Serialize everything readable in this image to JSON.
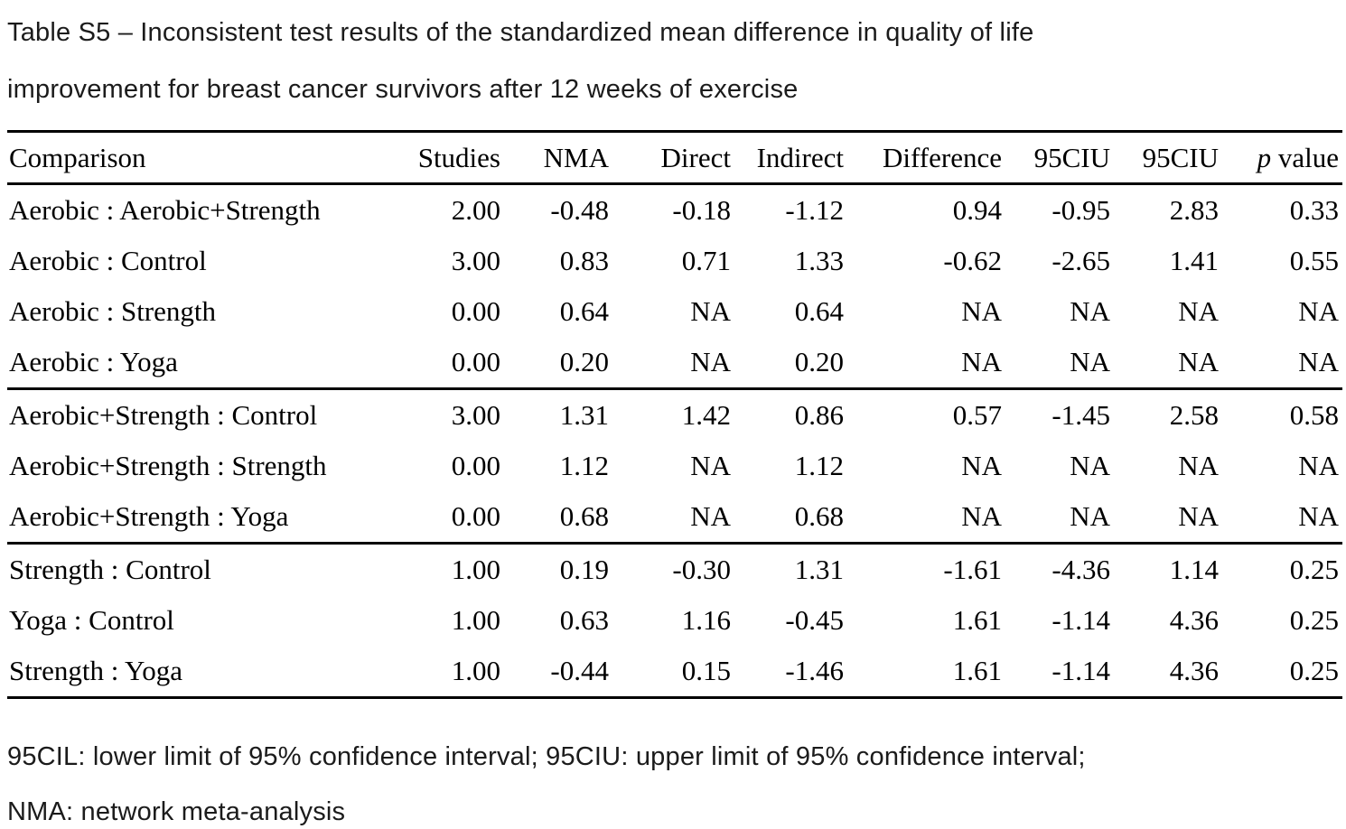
{
  "colors": {
    "background": "#ffffff",
    "text": "#000000",
    "caption_text": "#1b1b1b",
    "rule": "#000000"
  },
  "caption": {
    "full": "Table S5 – Inconsistent test results of the standardized mean difference in quality of life improvement for breast cancer survivors after 12 weeks of exercise",
    "lines": [
      "Table S5 – Inconsistent test results of the standardized mean difference in quality of life",
      "improvement for breast cancer survivors after 12 weeks of exercise"
    ]
  },
  "table": {
    "header": {
      "cols": [
        "Comparison",
        "Studies",
        "NMA",
        "Direct",
        "Indirect",
        "Difference",
        "95CIU",
        "95CIU"
      ],
      "p_symbol": "p",
      "p_rest": "value"
    },
    "groups": [
      {
        "rows": [
          [
            "Aerobic : Aerobic+Strength",
            "2.00",
            "-0.48",
            "-0.18",
            "-1.12",
            "0.94",
            "-0.95",
            "2.83",
            "0.33"
          ],
          [
            "Aerobic : Control",
            "3.00",
            "0.83",
            "0.71",
            "1.33",
            "-0.62",
            "-2.65",
            "1.41",
            "0.55"
          ],
          [
            "Aerobic : Strength",
            "0.00",
            "0.64",
            "NA",
            "0.64",
            "NA",
            "NA",
            "NA",
            "NA"
          ],
          [
            "Aerobic : Yoga",
            "0.00",
            "0.20",
            "NA",
            "0.20",
            "NA",
            "NA",
            "NA",
            "NA"
          ]
        ]
      },
      {
        "rows": [
          [
            "Aerobic+Strength : Control",
            "3.00",
            "1.31",
            "1.42",
            "0.86",
            "0.57",
            "-1.45",
            "2.58",
            "0.58"
          ],
          [
            "Aerobic+Strength : Strength",
            "0.00",
            "1.12",
            "NA",
            "1.12",
            "NA",
            "NA",
            "NA",
            "NA"
          ],
          [
            "Aerobic+Strength : Yoga",
            "0.00",
            "0.68",
            "NA",
            "0.68",
            "NA",
            "NA",
            "NA",
            "NA"
          ]
        ]
      },
      {
        "rows": [
          [
            "Strength : Control",
            "1.00",
            "0.19",
            "-0.30",
            "1.31",
            "-1.61",
            "-4.36",
            "1.14",
            "0.25"
          ],
          [
            "Yoga : Control",
            "1.00",
            "0.63",
            "1.16",
            "-0.45",
            "1.61",
            "-1.14",
            "4.36",
            "0.25"
          ],
          [
            "Strength : Yoga",
            "1.00",
            "-0.44",
            "0.15",
            "-1.46",
            "1.61",
            "-1.14",
            "4.36",
            "0.25"
          ]
        ]
      }
    ]
  },
  "footnotes": [
    "95CIL: lower limit of 95% confidence interval; 95CIU: upper limit of 95% confidence interval;",
    "NMA: network meta-analysis"
  ]
}
